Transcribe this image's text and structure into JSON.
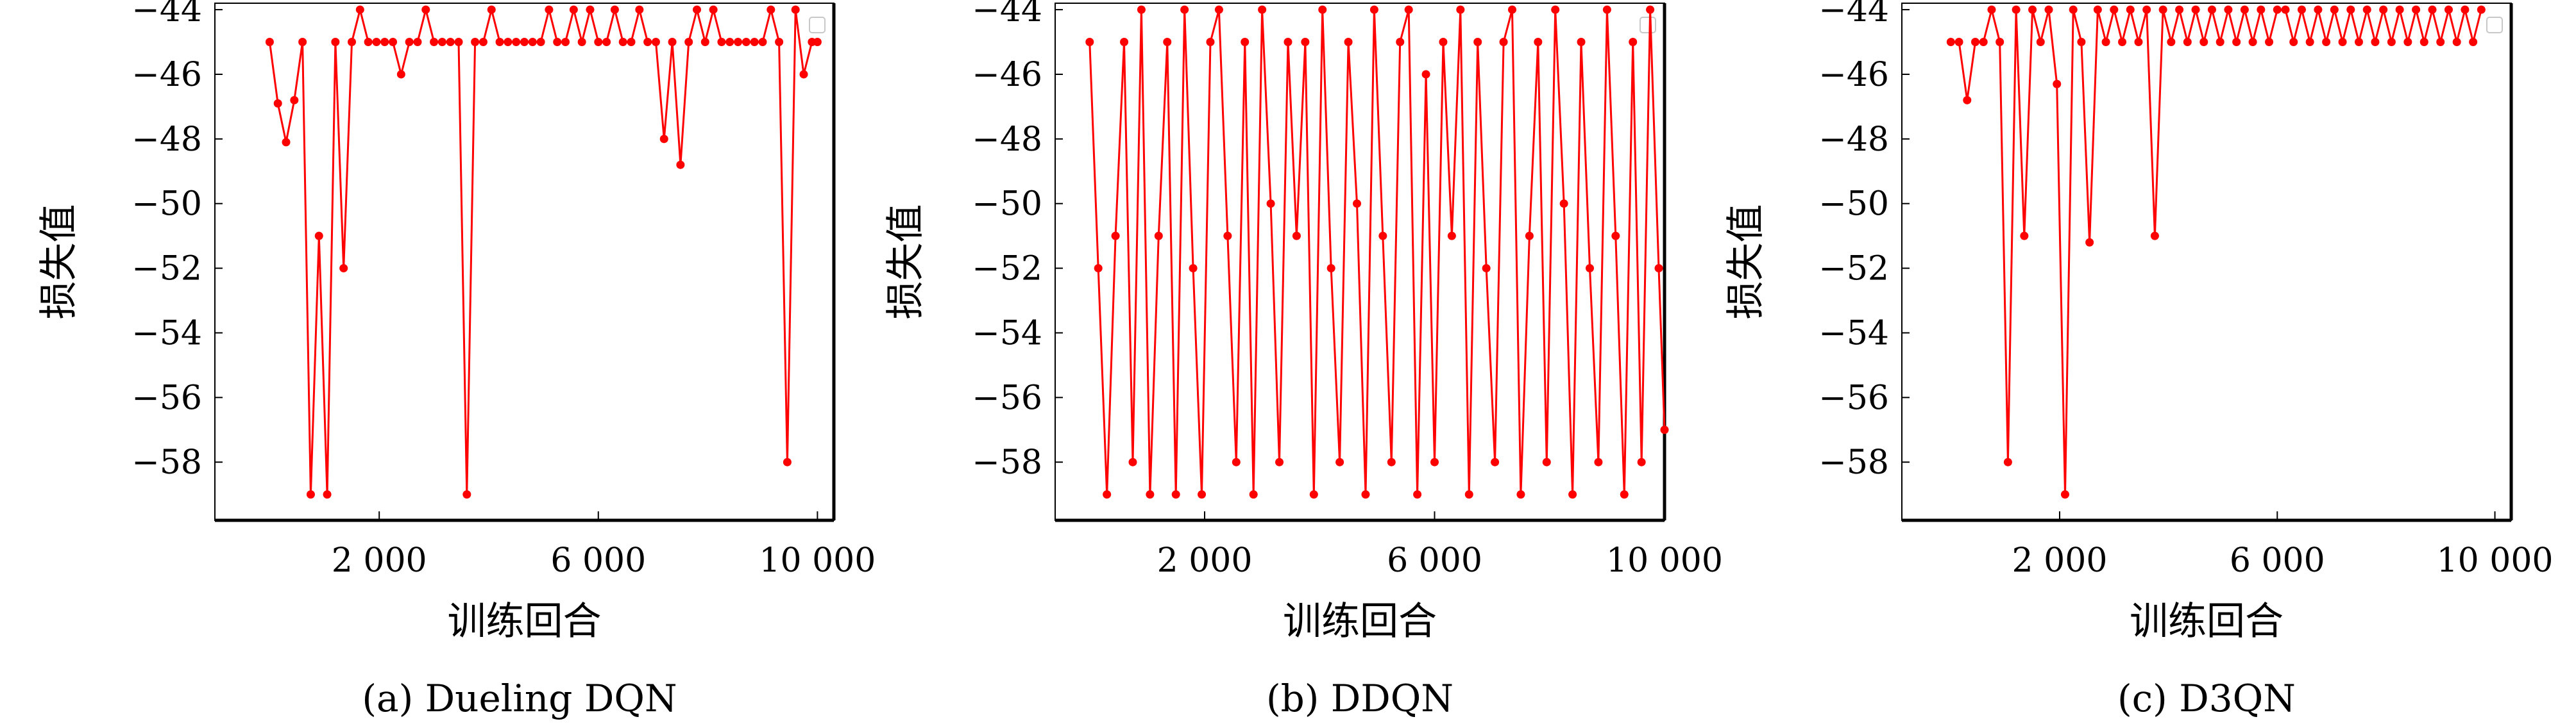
{
  "series_color": "#ff0000",
  "chart_data": [
    {
      "type": "line",
      "caption": "(a) Dueling DQN",
      "xlabel": "训练回合",
      "ylabel": "损失值",
      "xlim": [
        -1000,
        10300
      ],
      "ylim": [
        -59.8,
        -43.8
      ],
      "xticks": [
        2000,
        6000,
        10000
      ],
      "xtick_labels": [
        "2 000",
        "6 000",
        "10 000"
      ],
      "yticks": [
        -44,
        -46,
        -48,
        -50,
        -52,
        -54,
        -56,
        -58
      ],
      "grid": false,
      "legend": "top-right (empty)",
      "x": [
        0,
        150,
        300,
        450,
        600,
        750,
        900,
        1050,
        1200,
        1350,
        1500,
        1650,
        1800,
        1950,
        2100,
        2250,
        2400,
        2550,
        2700,
        2850,
        3000,
        3150,
        3300,
        3450,
        3600,
        3750,
        3900,
        4050,
        4200,
        4350,
        4500,
        4650,
        4800,
        4950,
        5100,
        5250,
        5400,
        5550,
        5700,
        5850,
        6000,
        6150,
        6300,
        6450,
        6600,
        6750,
        6900,
        7050,
        7200,
        7350,
        7500,
        7650,
        7800,
        7950,
        8100,
        8250,
        8400,
        8550,
        8700,
        8850,
        9000,
        9150,
        9300,
        9450,
        9600,
        9750,
        9900,
        10000
      ],
      "y": [
        -45.0,
        -46.9,
        -48.1,
        -46.8,
        -45.0,
        -59.0,
        -51.0,
        -59.0,
        -45.0,
        -52.0,
        -45.0,
        -44.0,
        -45.0,
        -45.0,
        -45.0,
        -45.0,
        -46.0,
        -45.0,
        -45.0,
        -44.0,
        -45.0,
        -45.0,
        -45.0,
        -45.0,
        -59.0,
        -45.0,
        -45.0,
        -44.0,
        -45.0,
        -45.0,
        -45.0,
        -45.0,
        -45.0,
        -45.0,
        -44.0,
        -45.0,
        -45.0,
        -44.0,
        -45.0,
        -44.0,
        -45.0,
        -45.0,
        -44.0,
        -45.0,
        -45.0,
        -44.0,
        -45.0,
        -45.0,
        -48.0,
        -45.0,
        -48.8,
        -45.0,
        -44.0,
        -45.0,
        -44.0,
        -45.0,
        -45.0,
        -45.0,
        -45.0,
        -45.0,
        -45.0,
        -44.0,
        -45.0,
        -58.0,
        -44.0,
        -46.0,
        -45.0,
        -45.0
      ]
    },
    {
      "type": "line",
      "caption": "(b) DDQN",
      "xlabel": "训练回合",
      "ylabel": "损失值",
      "xlim": [
        -600,
        10000
      ],
      "ylim": [
        -59.8,
        -43.8
      ],
      "xticks": [
        2000,
        6000,
        10000
      ],
      "xtick_labels": [
        "2 000",
        "6 000",
        "10 000"
      ],
      "yticks": [
        -44,
        -46,
        -48,
        -50,
        -52,
        -54,
        -56,
        -58
      ],
      "grid": false,
      "legend": "top-right (empty)",
      "x": [
        0,
        150,
        300,
        450,
        600,
        750,
        900,
        1050,
        1200,
        1350,
        1500,
        1650,
        1800,
        1950,
        2100,
        2250,
        2400,
        2550,
        2700,
        2850,
        3000,
        3150,
        3300,
        3450,
        3600,
        3750,
        3900,
        4050,
        4200,
        4350,
        4500,
        4650,
        4800,
        4950,
        5100,
        5250,
        5400,
        5550,
        5700,
        5850,
        6000,
        6150,
        6300,
        6450,
        6600,
        6750,
        6900,
        7050,
        7200,
        7350,
        7500,
        7650,
        7800,
        7950,
        8100,
        8250,
        8400,
        8550,
        8700,
        8850,
        9000,
        9150,
        9300,
        9450,
        9600,
        9750,
        9900,
        10000
      ],
      "y": [
        -45.0,
        -52.0,
        -59.0,
        -51.0,
        -45.0,
        -58.0,
        -44.0,
        -59.0,
        -51.0,
        -45.0,
        -59.0,
        -44.0,
        -52.0,
        -59.0,
        -45.0,
        -44.0,
        -51.0,
        -58.0,
        -45.0,
        -59.0,
        -44.0,
        -50.0,
        -58.0,
        -45.0,
        -51.0,
        -45.0,
        -59.0,
        -44.0,
        -52.0,
        -58.0,
        -45.0,
        -50.0,
        -59.0,
        -44.0,
        -51.0,
        -58.0,
        -45.0,
        -44.0,
        -59.0,
        -46.0,
        -58.0,
        -45.0,
        -51.0,
        -44.0,
        -59.0,
        -45.0,
        -52.0,
        -58.0,
        -45.0,
        -44.0,
        -59.0,
        -51.0,
        -45.0,
        -58.0,
        -44.0,
        -50.0,
        -59.0,
        -45.0,
        -52.0,
        -58.0,
        -44.0,
        -51.0,
        -59.0,
        -45.0,
        -58.0,
        -44.0,
        -52.0,
        -57.0
      ]
    },
    {
      "type": "line",
      "caption": "(c) D3QN",
      "xlabel": "训练回合",
      "ylabel": "损失值",
      "xlim": [
        -900,
        10300
      ],
      "ylim": [
        -59.8,
        -43.8
      ],
      "xticks": [
        2000,
        6000,
        10000
      ],
      "xtick_labels": [
        "2 000",
        "6 000",
        "10 000"
      ],
      "yticks": [
        -44,
        -46,
        -48,
        -50,
        -52,
        -54,
        -56,
        -58
      ],
      "grid": false,
      "legend": "top-right (empty)",
      "x": [
        0,
        150,
        300,
        450,
        600,
        750,
        900,
        1050,
        1200,
        1350,
        1500,
        1650,
        1800,
        1950,
        2100,
        2250,
        2400,
        2550,
        2700,
        2850,
        3000,
        3150,
        3300,
        3450,
        3600,
        3750,
        3900,
        4050,
        4200,
        4350,
        4500,
        4650,
        4800,
        4950,
        5100,
        5250,
        5400,
        5550,
        5700,
        5850,
        6000,
        6150,
        6300,
        6450,
        6600,
        6750,
        6900,
        7050,
        7200,
        7350,
        7500,
        7650,
        7800,
        7950,
        8100,
        8250,
        8400,
        8550,
        8700,
        8850,
        9000,
        9150,
        9300,
        9450,
        9600,
        9750
      ],
      "y": [
        -45.0,
        -45.0,
        -46.8,
        -45.0,
        -45.0,
        -44.0,
        -45.0,
        -58.0,
        -44.0,
        -51.0,
        -44.0,
        -45.0,
        -44.0,
        -46.3,
        -59.0,
        -44.0,
        -45.0,
        -51.2,
        -44.0,
        -45.0,
        -44.0,
        -45.0,
        -44.0,
        -45.0,
        -44.0,
        -51.0,
        -44.0,
        -45.0,
        -44.0,
        -45.0,
        -44.0,
        -45.0,
        -44.0,
        -45.0,
        -44.0,
        -45.0,
        -44.0,
        -45.0,
        -44.0,
        -45.0,
        -44.0,
        -44.0,
        -45.0,
        -44.0,
        -45.0,
        -44.0,
        -45.0,
        -44.0,
        -45.0,
        -44.0,
        -45.0,
        -44.0,
        -45.0,
        -44.0,
        -45.0,
        -44.0,
        -45.0,
        -44.0,
        -45.0,
        -44.0,
        -45.0,
        -44.0,
        -45.0,
        -44.0,
        -45.0,
        -44.0
      ]
    }
  ]
}
